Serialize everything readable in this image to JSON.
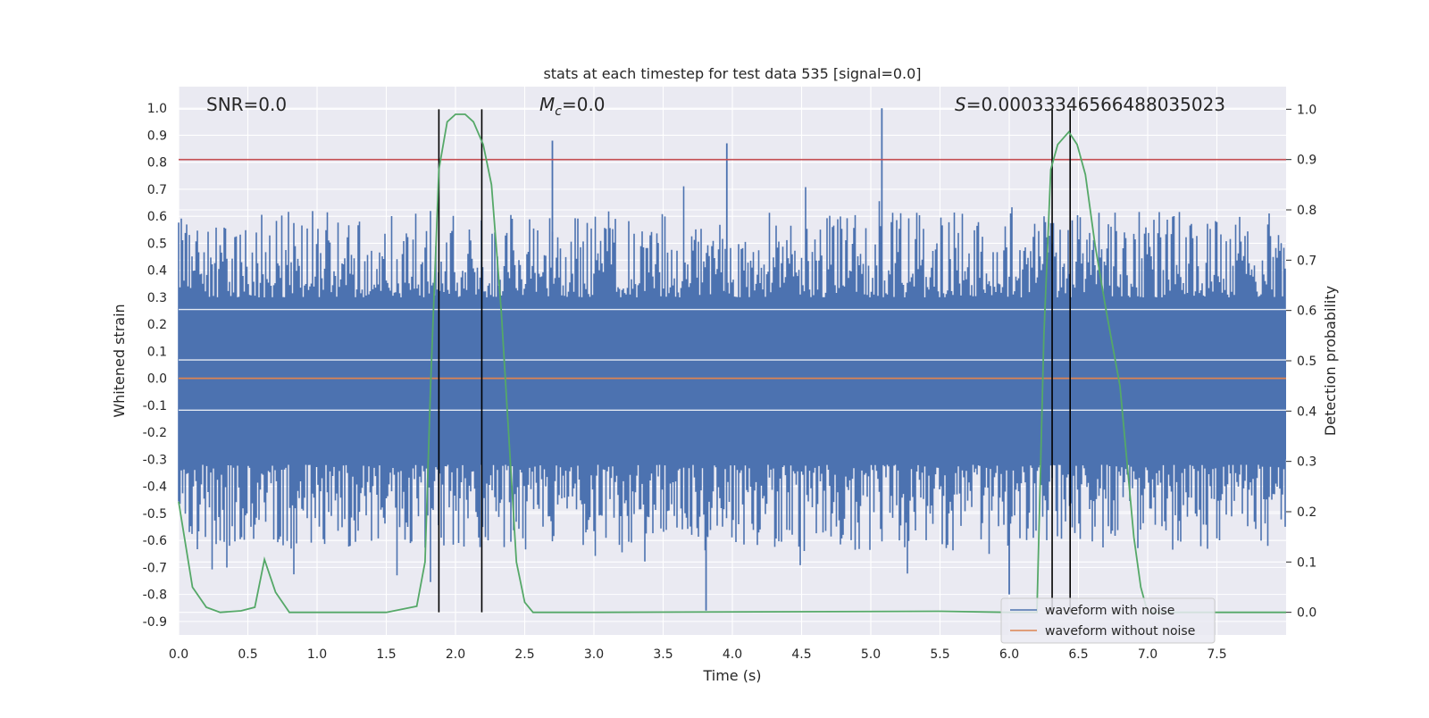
{
  "chart_data": {
    "type": "line",
    "title": "stats at each timestep for test data 535 [signal=0.0]",
    "xlabel": "Time (s)",
    "ylabel": "Whitened strain",
    "y2label": "Detection probability",
    "xlim": [
      0.0,
      8.0
    ],
    "ylim": [
      -0.95,
      1.08
    ],
    "y2lim": [
      -0.045,
      1.045
    ],
    "x_ticks": [
      "0.0",
      "0.5",
      "1.0",
      "1.5",
      "2.0",
      "2.5",
      "3.0",
      "3.5",
      "4.0",
      "4.5",
      "5.0",
      "5.5",
      "6.0",
      "6.5",
      "7.0",
      "7.5"
    ],
    "y_ticks": [
      "1.0",
      "0.9",
      "0.8",
      "0.7",
      "0.6",
      "0.5",
      "0.4",
      "0.3",
      "0.2",
      "0.1",
      "0.0",
      "-0.1",
      "-0.2",
      "-0.3",
      "-0.4",
      "-0.5",
      "-0.6",
      "-0.7",
      "-0.8",
      "-0.9"
    ],
    "y2_ticks": [
      "1.0",
      "0.9",
      "0.8",
      "0.7",
      "0.6",
      "0.5",
      "0.4",
      "0.3",
      "0.2",
      "0.1",
      "0.0"
    ],
    "grid": true,
    "legend_position": "bottom-right",
    "annotations": {
      "snr": "SNR=0.0",
      "mc": "=0.0",
      "mc_symbol": "M",
      "mc_subscript": "c",
      "s_value": "=0.00033346566488035023",
      "s_symbol": "S"
    },
    "series": [
      {
        "name": "waveform with noise",
        "axis": "left",
        "color": "#4c72b0",
        "description": "noise band, envelope approx +/-0.45 typical, peaks",
        "spikes": [
          {
            "x": 2.7,
            "y": 0.88
          },
          {
            "x": 3.96,
            "y": 0.87
          },
          {
            "x": 5.08,
            "y": 1.0
          },
          {
            "x": 3.81,
            "y": -0.86
          },
          {
            "x": 6.0,
            "y": -0.8
          },
          {
            "x": 4.53,
            "y": -0.12
          }
        ]
      },
      {
        "name": "waveform without noise",
        "axis": "left",
        "color": "#dd8452",
        "x": [
          0.0,
          8.0
        ],
        "y": [
          0.0,
          0.0
        ]
      },
      {
        "name": "detection probability",
        "axis": "right",
        "color": "#55a868",
        "x": [
          0.0,
          0.1,
          0.2,
          0.3,
          0.45,
          0.55,
          0.62,
          0.7,
          0.8,
          1.0,
          1.5,
          1.72,
          1.78,
          1.82,
          1.88,
          1.94,
          2.0,
          2.07,
          2.13,
          2.2,
          2.26,
          2.33,
          2.44,
          2.5,
          2.56,
          3.0,
          5.5,
          6.0,
          6.2,
          6.25,
          6.3,
          6.35,
          6.43,
          6.49,
          6.55,
          6.62,
          6.7,
          6.8,
          6.85,
          6.9,
          6.95,
          7.0,
          7.3,
          8.0
        ],
        "y": [
          0.22,
          0.05,
          0.01,
          0.0,
          0.003,
          0.01,
          0.105,
          0.04,
          0.0,
          0.0,
          0.0,
          0.012,
          0.1,
          0.45,
          0.88,
          0.975,
          0.99,
          0.99,
          0.975,
          0.93,
          0.85,
          0.6,
          0.1,
          0.02,
          0.0,
          0.0,
          0.002,
          0.0,
          0.0,
          0.55,
          0.88,
          0.93,
          0.955,
          0.93,
          0.87,
          0.73,
          0.6,
          0.45,
          0.3,
          0.15,
          0.05,
          0.0,
          0.0,
          0.0
        ]
      }
    ],
    "vertical_lines": [
      {
        "x": 1.88,
        "color": "#000000"
      },
      {
        "x": 2.19,
        "color": "#000000"
      },
      {
        "x": 6.31,
        "color": "#000000"
      },
      {
        "x": 6.44,
        "color": "#000000"
      }
    ],
    "threshold_line": {
      "y2": 0.9,
      "color": "#c44e52"
    },
    "legend": [
      {
        "label": "waveform with noise",
        "color": "#4c72b0"
      },
      {
        "label": "waveform without noise",
        "color": "#dd8452"
      }
    ]
  }
}
